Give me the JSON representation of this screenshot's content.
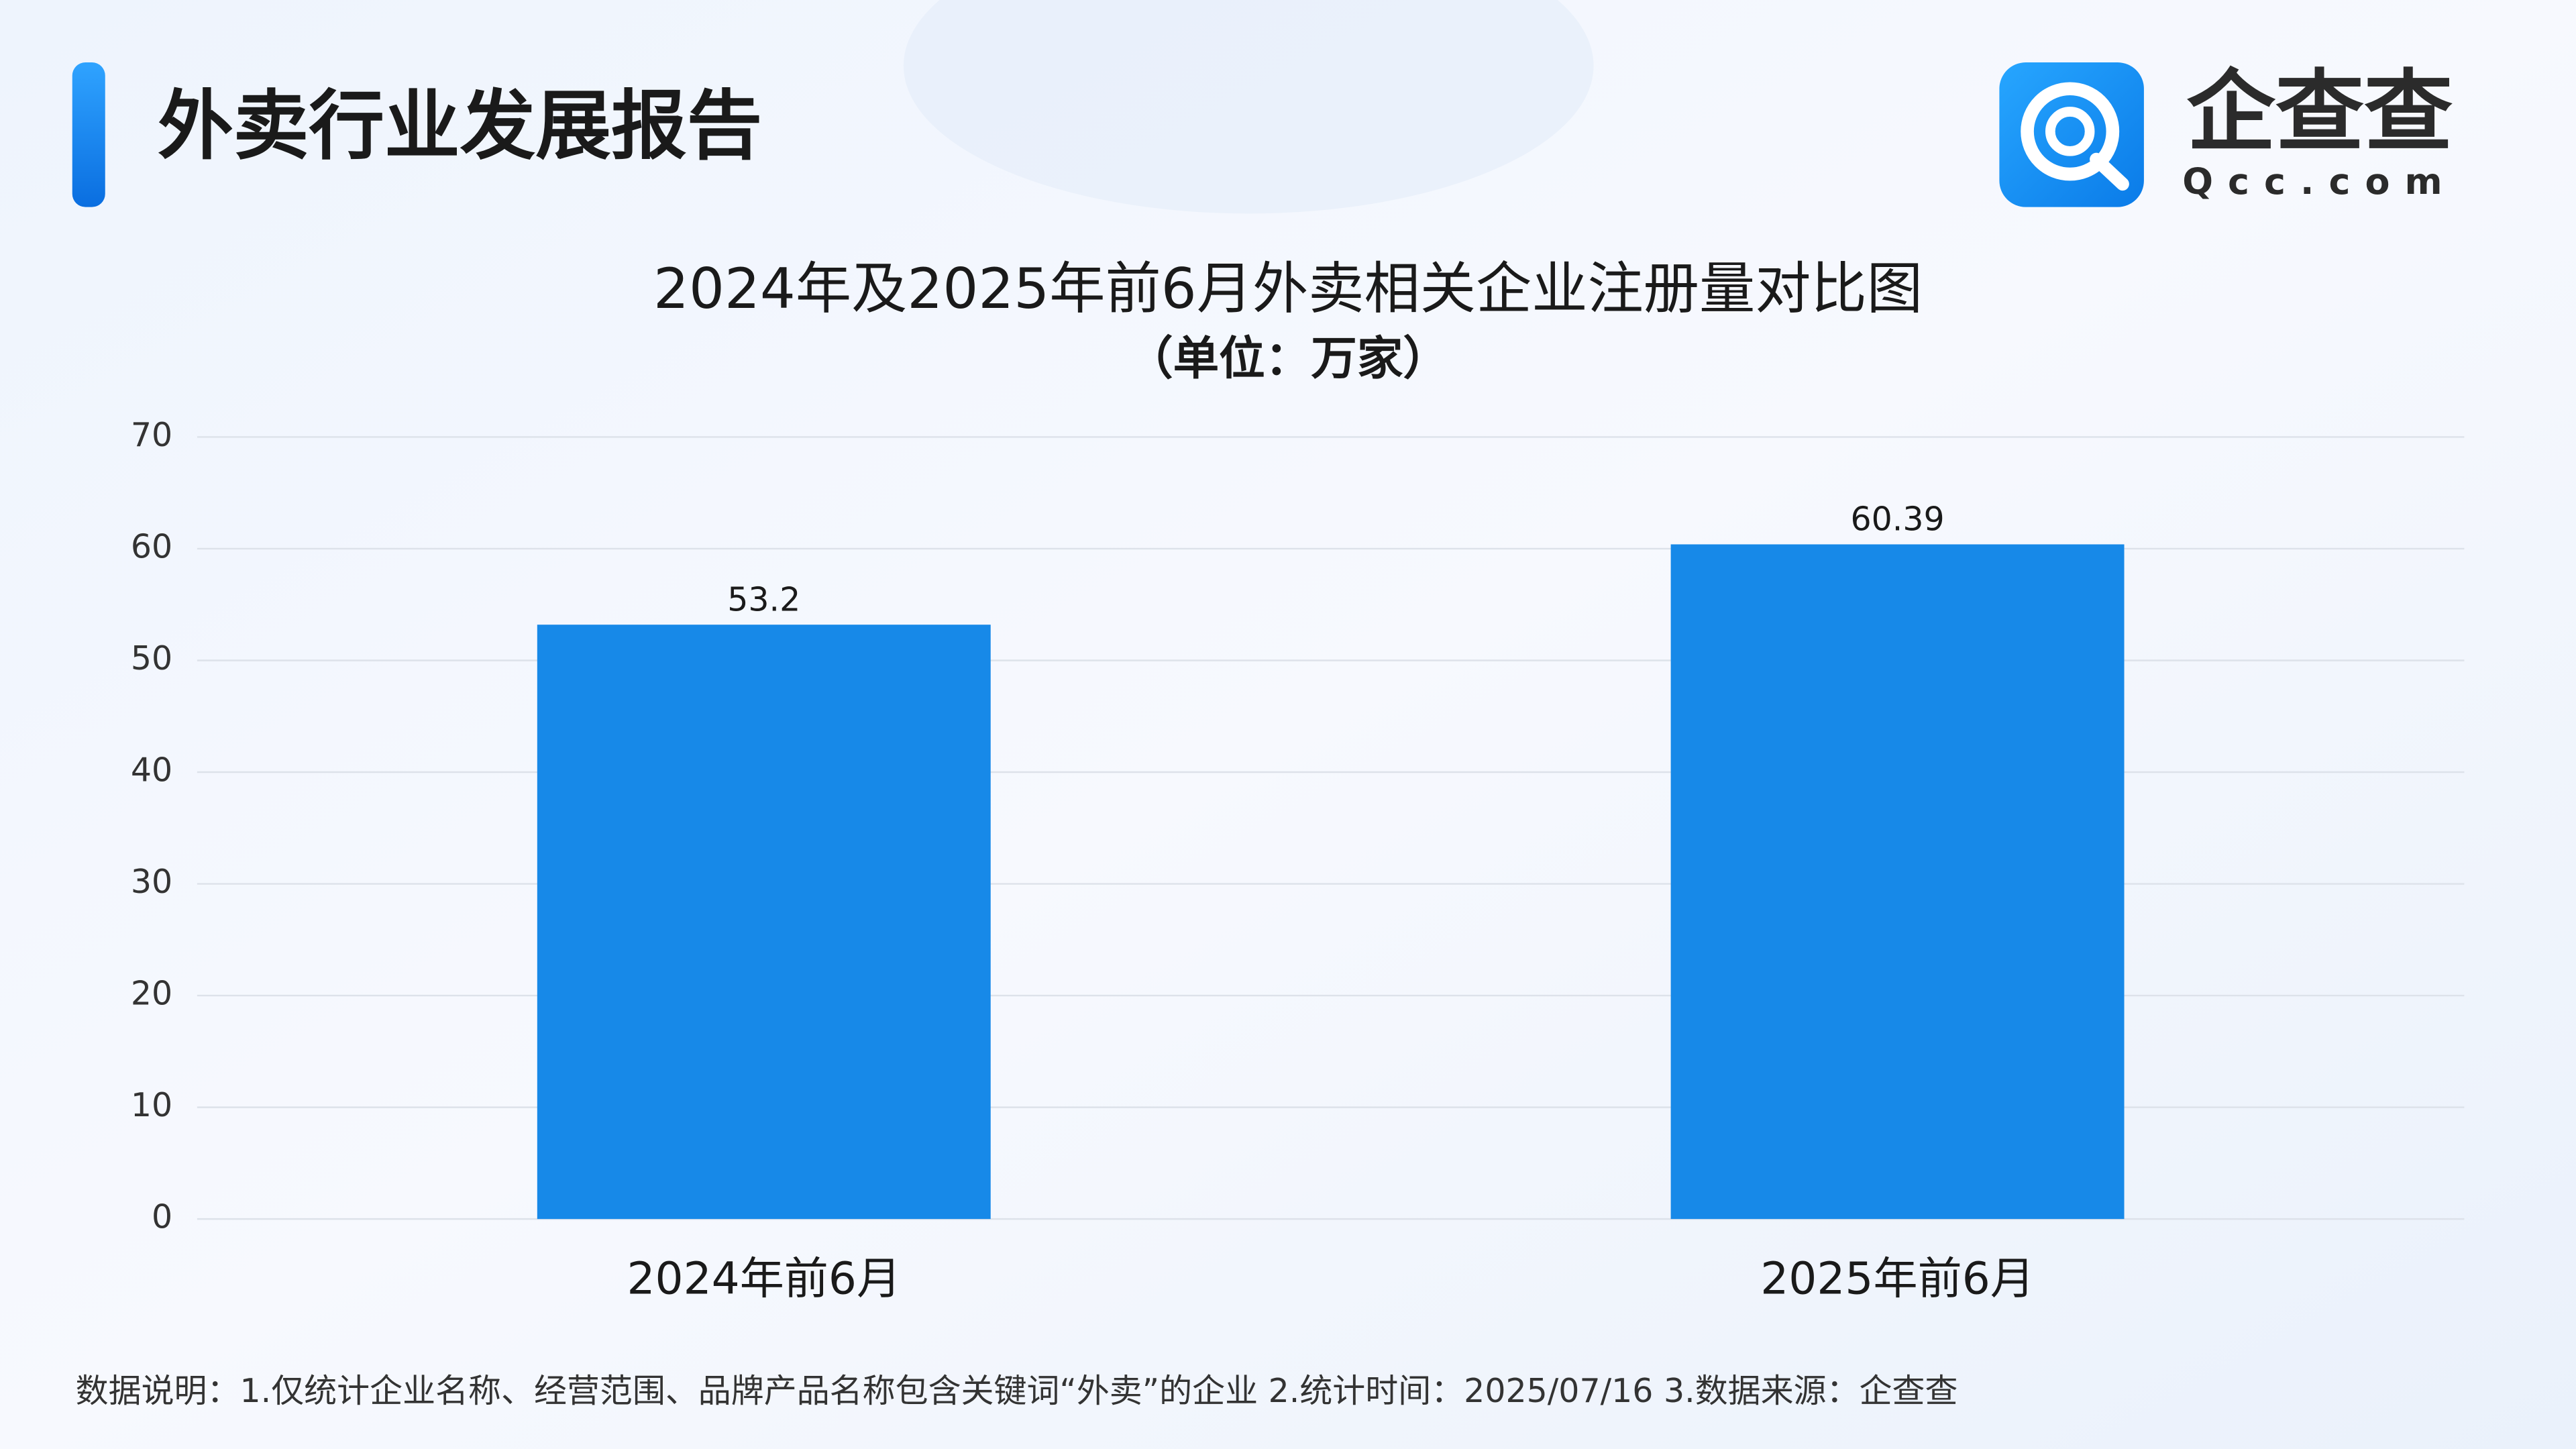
{
  "header": {
    "title": "外卖行业发展报告",
    "logo": {
      "name": "企查查",
      "domain": "Qcc.com"
    }
  },
  "chart_data": {
    "type": "bar",
    "title": "2024年及2025年前6月外卖相关企业注册量对比图",
    "subtitle": "（单位：万家）",
    "categories": [
      "2024年前6月",
      "2025年前6月"
    ],
    "values": [
      53.2,
      60.39
    ],
    "color": "#1789e8",
    "ylim": [
      0,
      70
    ],
    "yticks": [
      0,
      10,
      20,
      30,
      40,
      50,
      60,
      70
    ],
    "grid": true
  },
  "footnote": "数据说明：1.仅统计企业名称、经营范围、品牌产品名称包含关键词“外卖”的企业   2.统计时间：2025/07/16    3.数据来源：企查查"
}
